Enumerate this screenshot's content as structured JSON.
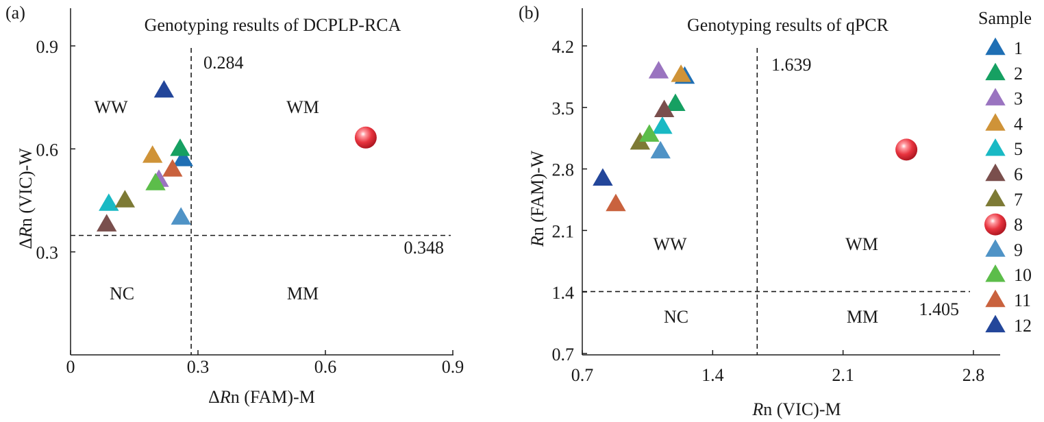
{
  "chart_data": [
    {
      "type": "scatter",
      "panel_label": "(a)",
      "title": "Genotyping results of DCPLP-RCA",
      "xlabel": "ΔRn (FAM)-M",
      "ylabel": "ΔRn (VIC)-W",
      "xlim": [
        0,
        0.9
      ],
      "ylim": [
        0,
        1.02
      ],
      "xticks": [
        0,
        0.3,
        0.6,
        0.9
      ],
      "xtick_labels": [
        "0",
        "0.3",
        "0.6",
        "0.9"
      ],
      "yticks": [
        0.3,
        0.6,
        0.9
      ],
      "ytick_labels": [
        "0.3",
        "0.6",
        "0.9"
      ],
      "threshold_x": 0.284,
      "threshold_x_label": "0.284",
      "threshold_y": 0.348,
      "threshold_y_label": "0.348",
      "quadrant_labels": {
        "top_left": "WW",
        "top_right": "WM",
        "bottom_left": "NC",
        "bottom_right": "MM"
      },
      "points": [
        {
          "sample": "1",
          "x": 0.265,
          "y": 0.57
        },
        {
          "sample": "2",
          "x": 0.258,
          "y": 0.6
        },
        {
          "sample": "3",
          "x": 0.208,
          "y": 0.51
        },
        {
          "sample": "4",
          "x": 0.193,
          "y": 0.58
        },
        {
          "sample": "5",
          "x": 0.09,
          "y": 0.44
        },
        {
          "sample": "6",
          "x": 0.085,
          "y": 0.38
        },
        {
          "sample": "7",
          "x": 0.128,
          "y": 0.45
        },
        {
          "sample": "8",
          "x": 0.695,
          "y": 0.633
        },
        {
          "sample": "9",
          "x": 0.26,
          "y": 0.4
        },
        {
          "sample": "10",
          "x": 0.2,
          "y": 0.5
        },
        {
          "sample": "11",
          "x": 0.24,
          "y": 0.54
        },
        {
          "sample": "12",
          "x": 0.22,
          "y": 0.77
        }
      ]
    },
    {
      "type": "scatter",
      "panel_label": "(b)",
      "title": "Genotyping results of qPCR",
      "xlabel": "Rn (VIC)-M",
      "ylabel": "Rn (FAM)-W",
      "xlim": [
        0.7,
        3.05
      ],
      "ylim": [
        0.7,
        4.62
      ],
      "xticks": [
        0.7,
        1.4,
        2.1,
        2.8
      ],
      "xtick_labels": [
        "0.7",
        "1.4",
        "2.1",
        "2.8"
      ],
      "yticks": [
        0.7,
        1.4,
        2.1,
        2.8,
        3.5,
        4.2
      ],
      "ytick_labels": [
        "0.7",
        "1.4",
        "2.1",
        "2.8",
        "3.5",
        "4.2"
      ],
      "threshold_x": 1.639,
      "threshold_x_label": "1.639",
      "threshold_y": 1.405,
      "threshold_y_label": "1.405",
      "quadrant_labels": {
        "top_left": "WW",
        "top_right": "WM",
        "bottom_left": "NC",
        "bottom_right": "MM"
      },
      "points": [
        {
          "sample": "1",
          "x": 1.25,
          "y": 3.85
        },
        {
          "sample": "2",
          "x": 1.2,
          "y": 3.54
        },
        {
          "sample": "3",
          "x": 1.11,
          "y": 3.91
        },
        {
          "sample": "4",
          "x": 1.23,
          "y": 3.87
        },
        {
          "sample": "5",
          "x": 1.13,
          "y": 3.28
        },
        {
          "sample": "6",
          "x": 1.14,
          "y": 3.47
        },
        {
          "sample": "7",
          "x": 1.01,
          "y": 3.1
        },
        {
          "sample": "8",
          "x": 2.44,
          "y": 3.02
        },
        {
          "sample": "9",
          "x": 1.12,
          "y": 3.0
        },
        {
          "sample": "10",
          "x": 1.06,
          "y": 3.19
        },
        {
          "sample": "11",
          "x": 0.88,
          "y": 2.4
        },
        {
          "sample": "12",
          "x": 0.81,
          "y": 2.69
        }
      ]
    }
  ],
  "legend": {
    "title": "Sample",
    "placement": "right",
    "items": [
      {
        "label": "1",
        "marker": "triangle",
        "color": "#1f6fb4"
      },
      {
        "label": "2",
        "marker": "triangle",
        "color": "#16a062"
      },
      {
        "label": "3",
        "marker": "triangle",
        "color": "#9a74c0"
      },
      {
        "label": "4",
        "marker": "triangle",
        "color": "#cf9338"
      },
      {
        "label": "5",
        "marker": "triangle",
        "color": "#19b9c4"
      },
      {
        "label": "6",
        "marker": "triangle",
        "color": "#7a4f4d"
      },
      {
        "label": "7",
        "marker": "triangle",
        "color": "#7d7a35"
      },
      {
        "label": "8",
        "marker": "sphere",
        "color": "#e8343f"
      },
      {
        "label": "9",
        "marker": "triangle",
        "color": "#4f93c6"
      },
      {
        "label": "10",
        "marker": "triangle",
        "color": "#5cbd4a"
      },
      {
        "label": "11",
        "marker": "triangle",
        "color": "#c9623e"
      },
      {
        "label": "12",
        "marker": "triangle",
        "color": "#23469a"
      }
    ]
  }
}
